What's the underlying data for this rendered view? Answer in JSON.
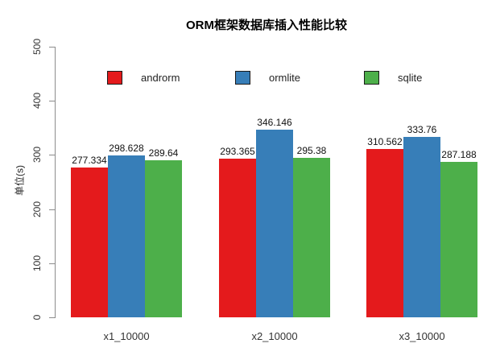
{
  "chart_data": {
    "type": "bar",
    "title": "ORM框架数据库插入性能比较",
    "ylabel": "单位(s)",
    "xlabel": "",
    "categories": [
      "x1_10000",
      "x2_10000",
      "x3_10000"
    ],
    "series": [
      {
        "name": "androrm",
        "color": "#E41A1C",
        "values": [
          277.334,
          293.365,
          310.562
        ]
      },
      {
        "name": "ormlite",
        "color": "#377EB8",
        "values": [
          298.628,
          346.146,
          333.76
        ]
      },
      {
        "name": "sqlite",
        "color": "#4DAF4A",
        "values": [
          289.64,
          295.38,
          287.188
        ]
      }
    ],
    "ylim": [
      0,
      500
    ],
    "yticks": [
      0,
      100,
      200,
      300,
      400,
      500
    ],
    "grid": false,
    "legend_position": "top",
    "value_labels": true,
    "background_color": "#ffffff",
    "axis_color": "#8c8c8c"
  }
}
